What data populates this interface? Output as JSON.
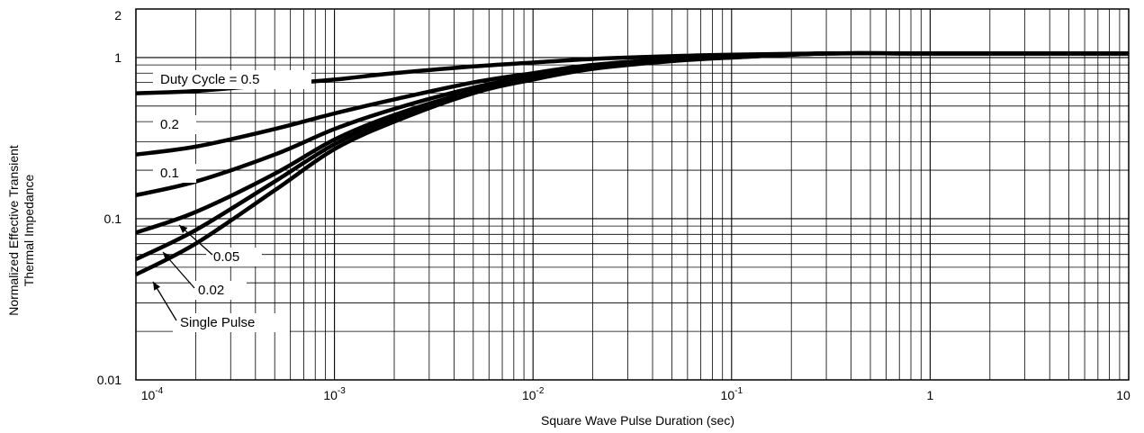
{
  "chart_data": {
    "type": "line",
    "title": "",
    "xlabel": "Square Wave Pulse Duration (sec)",
    "ylabel_lines": [
      "Normalized Effective Transient",
      "Thermal Impedance"
    ],
    "x_scale": "log",
    "y_scale": "log",
    "xlim": [
      0.0001,
      10
    ],
    "ylim": [
      0.01,
      2
    ],
    "grid": true,
    "x_ticks": [
      {
        "value": 0.0001,
        "base": "10",
        "exp": "-4"
      },
      {
        "value": 0.001,
        "base": "10",
        "exp": "-3"
      },
      {
        "value": 0.01,
        "base": "10",
        "exp": "-2"
      },
      {
        "value": 0.1,
        "base": "10",
        "exp": "-1"
      },
      {
        "value": 1,
        "base": "1",
        "exp": ""
      },
      {
        "value": 10,
        "base": "10",
        "exp": ""
      }
    ],
    "y_ticks": [
      {
        "value": 0.01,
        "label": "0.01"
      },
      {
        "value": 0.1,
        "label": "0.1"
      },
      {
        "value": 1,
        "label": "1"
      },
      {
        "value": 2,
        "label": "2"
      }
    ],
    "series": [
      {
        "name": "Duty Cycle = 0.5",
        "x": [
          0.0001,
          0.0002,
          0.0005,
          0.001,
          0.002,
          0.005,
          0.01,
          0.02,
          0.05,
          0.1,
          0.3,
          1,
          10
        ],
        "y": [
          0.6,
          0.62,
          0.68,
          0.73,
          0.8,
          0.88,
          0.93,
          0.98,
          1.02,
          1.04,
          1.06,
          1.06,
          1.06
        ]
      },
      {
        "name": "0.2",
        "x": [
          0.0001,
          0.0002,
          0.0005,
          0.001,
          0.002,
          0.005,
          0.01,
          0.02,
          0.05,
          0.1,
          0.3,
          1,
          10
        ],
        "y": [
          0.25,
          0.28,
          0.36,
          0.45,
          0.55,
          0.7,
          0.8,
          0.9,
          0.98,
          1.02,
          1.06,
          1.06,
          1.06
        ]
      },
      {
        "name": "0.1",
        "x": [
          0.0001,
          0.0002,
          0.0005,
          0.001,
          0.002,
          0.005,
          0.01,
          0.02,
          0.05,
          0.1,
          0.3,
          1,
          10
        ],
        "y": [
          0.14,
          0.17,
          0.25,
          0.36,
          0.48,
          0.65,
          0.77,
          0.88,
          0.97,
          1.01,
          1.06,
          1.06,
          1.06
        ]
      },
      {
        "name": "0.05",
        "x": [
          0.0001,
          0.0002,
          0.0005,
          0.001,
          0.002,
          0.005,
          0.01,
          0.02,
          0.05,
          0.1,
          0.3,
          1,
          10
        ],
        "y": [
          0.082,
          0.11,
          0.19,
          0.31,
          0.44,
          0.62,
          0.75,
          0.87,
          0.96,
          1.01,
          1.06,
          1.06,
          1.06
        ]
      },
      {
        "name": "0.02",
        "x": [
          0.0001,
          0.0002,
          0.0005,
          0.001,
          0.002,
          0.005,
          0.01,
          0.02,
          0.05,
          0.1,
          0.3,
          1,
          10
        ],
        "y": [
          0.056,
          0.085,
          0.17,
          0.29,
          0.42,
          0.61,
          0.74,
          0.86,
          0.96,
          1.0,
          1.06,
          1.06,
          1.06
        ]
      },
      {
        "name": "Single Pulse",
        "x": [
          0.0001,
          0.0002,
          0.0005,
          0.001,
          0.002,
          0.005,
          0.01,
          0.02,
          0.05,
          0.1,
          0.3,
          1,
          10
        ],
        "y": [
          0.045,
          0.07,
          0.15,
          0.27,
          0.4,
          0.6,
          0.73,
          0.85,
          0.95,
          1.0,
          1.06,
          1.06,
          1.06
        ]
      }
    ],
    "annotations": {
      "duty_cycle": "Duty Cycle = 0.5",
      "d02": "0.2",
      "d01": "0.1",
      "d005": "0.05",
      "d002": "0.02",
      "single": "Single Pulse"
    }
  }
}
